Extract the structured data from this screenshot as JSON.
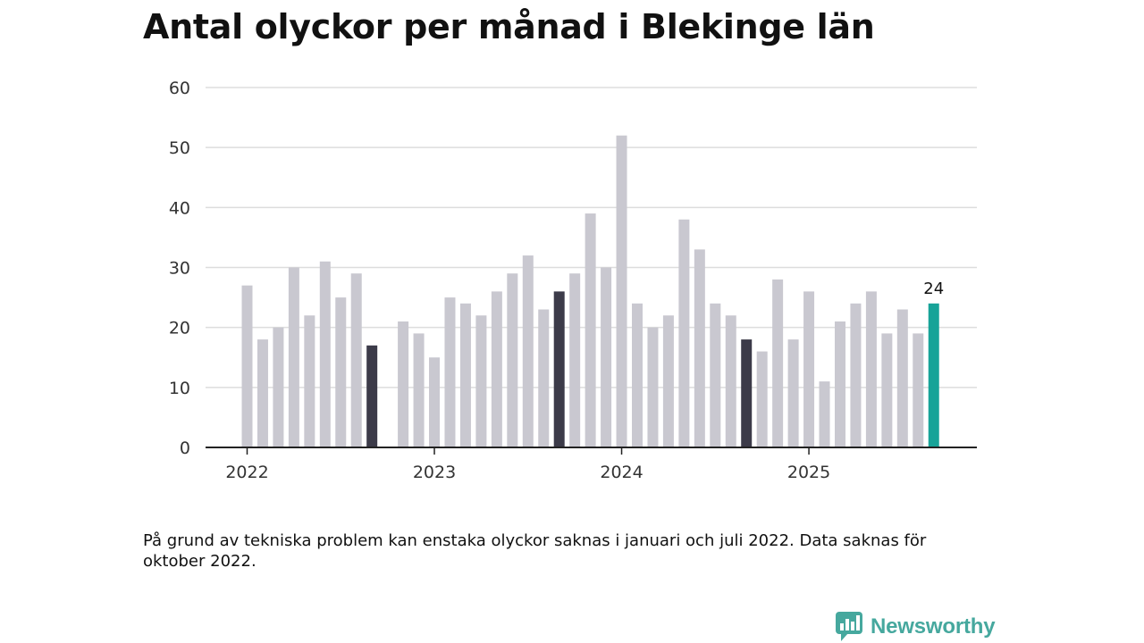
{
  "title": "Antal olyckor per månad i Blekinge län",
  "note": "På grund av tekniska problem kan enstaka olyckor saknas i januari och juli 2022. Data saknas för oktober 2022.",
  "brand": {
    "name": "Newsworthy",
    "icon": "chart-speech-bubble-icon"
  },
  "colors": {
    "bar_default": "#c9c8d0",
    "bar_september": "#3c3b49",
    "bar_latest": "#17a398",
    "grid": "#dddddd",
    "axis": "#222222",
    "brand": "#46a89e"
  },
  "chart_data": {
    "type": "bar",
    "title": "Antal olyckor per månad i Blekinge län",
    "xlabel": "",
    "ylabel": "",
    "ylim": [
      0,
      60
    ],
    "yticks": [
      0,
      10,
      20,
      30,
      40,
      50,
      60
    ],
    "grid": true,
    "x_ticks": [
      "2022",
      "2023",
      "2024",
      "2025"
    ],
    "x": [
      "2022-01",
      "2022-02",
      "2022-03",
      "2022-04",
      "2022-05",
      "2022-06",
      "2022-07",
      "2022-08",
      "2022-09",
      "2022-10",
      "2022-11",
      "2022-12",
      "2023-01",
      "2023-02",
      "2023-03",
      "2023-04",
      "2023-05",
      "2023-06",
      "2023-07",
      "2023-08",
      "2023-09",
      "2023-10",
      "2023-11",
      "2023-12",
      "2024-01",
      "2024-02",
      "2024-03",
      "2024-04",
      "2024-05",
      "2024-06",
      "2024-07",
      "2024-08",
      "2024-09",
      "2024-10",
      "2024-11",
      "2024-12",
      "2025-01",
      "2025-02",
      "2025-03",
      "2025-04",
      "2025-05",
      "2025-06",
      "2025-07",
      "2025-08",
      "2025-09"
    ],
    "values": [
      27,
      18,
      20,
      30,
      22,
      31,
      25,
      29,
      17,
      null,
      21,
      19,
      15,
      25,
      24,
      22,
      26,
      29,
      32,
      23,
      26,
      29,
      39,
      30,
      52,
      24,
      20,
      22,
      38,
      33,
      24,
      22,
      18,
      16,
      28,
      18,
      26,
      11,
      21,
      24,
      26,
      19,
      23,
      19,
      24
    ],
    "highlighted": [
      "2022-09",
      "2023-09",
      "2024-09"
    ],
    "latest": {
      "x": "2025-09",
      "label": "24"
    }
  }
}
